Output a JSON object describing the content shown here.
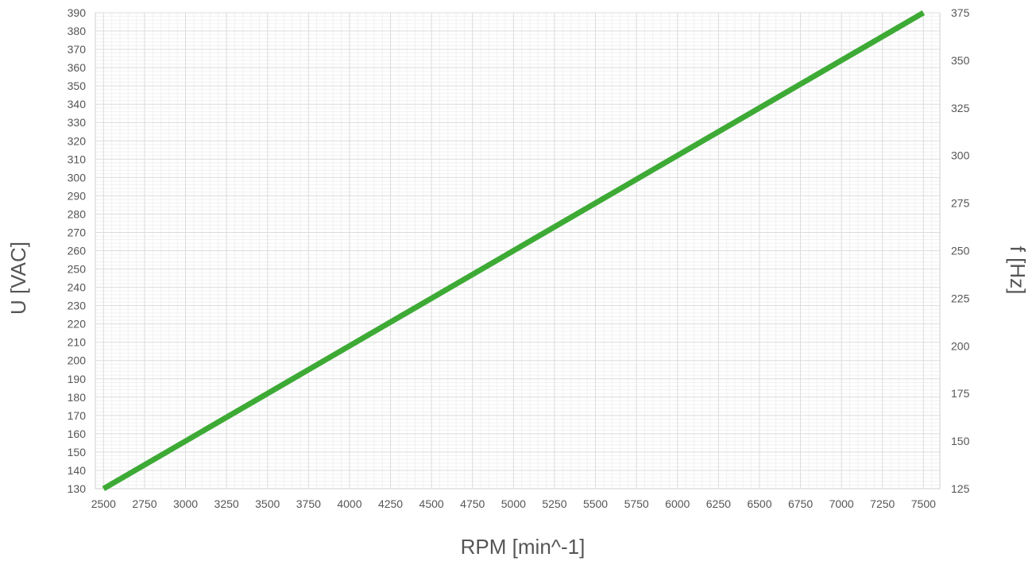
{
  "chart_data": {
    "type": "line",
    "title": "",
    "xlabel": "RPM [min^-1]",
    "ylabel": "U [VAC]",
    "y2label": "f [Hz]",
    "xlim": [
      2450,
      7600
    ],
    "ylim": [
      130,
      390
    ],
    "y2lim": [
      125,
      375
    ],
    "x_ticks": [
      2500,
      2750,
      3000,
      3250,
      3500,
      3750,
      4000,
      4250,
      4500,
      4750,
      5000,
      5250,
      5500,
      5750,
      6000,
      6250,
      6500,
      6750,
      7000,
      7250,
      7500
    ],
    "y_ticks": [
      130,
      140,
      150,
      160,
      170,
      180,
      190,
      200,
      210,
      220,
      230,
      240,
      250,
      260,
      270,
      280,
      290,
      300,
      310,
      320,
      330,
      340,
      350,
      360,
      370,
      380,
      390
    ],
    "y2_ticks": [
      125,
      150,
      175,
      200,
      225,
      250,
      275,
      300,
      325,
      350,
      375
    ],
    "grid": true,
    "legend": "none",
    "series": [
      {
        "color": "#3daa35",
        "x": [
          2500,
          7500
        ],
        "y": [
          130,
          390
        ]
      }
    ]
  }
}
